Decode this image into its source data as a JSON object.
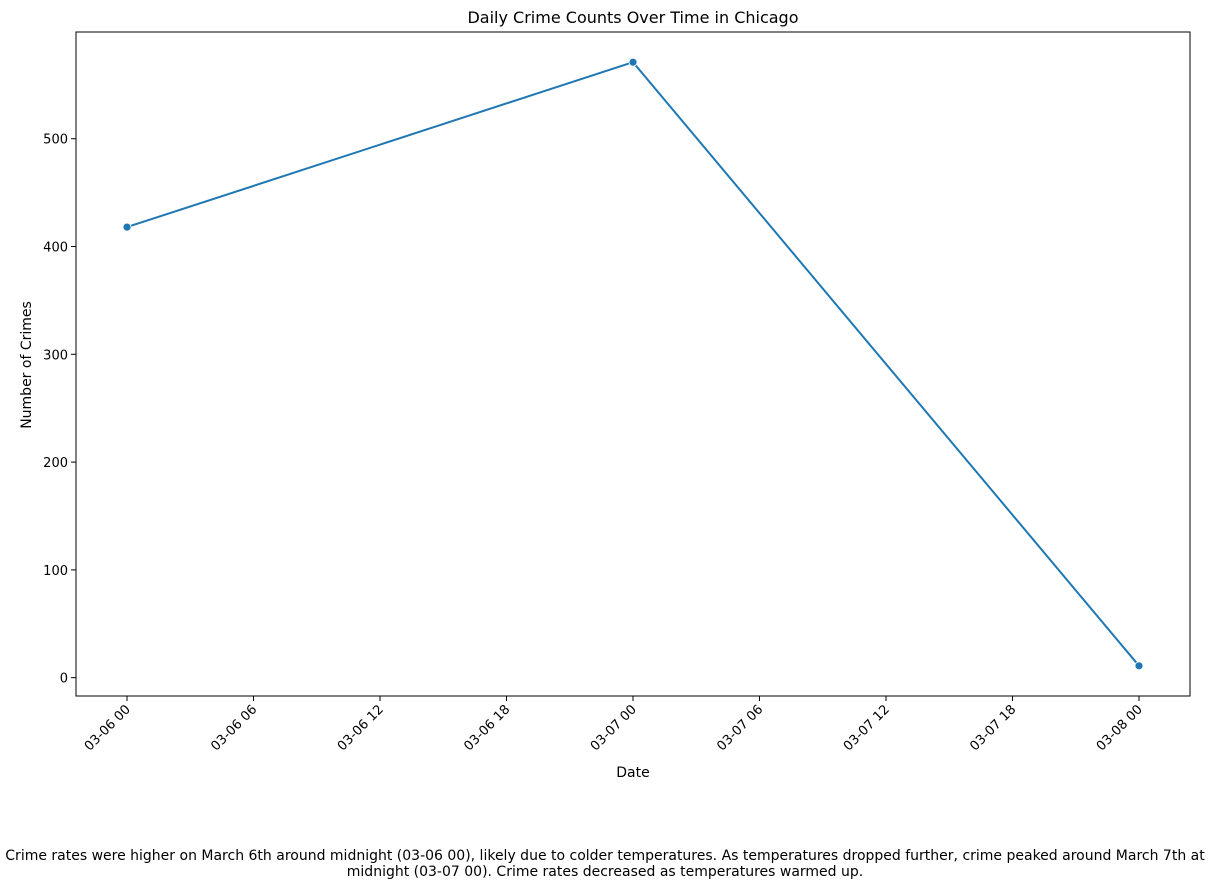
{
  "chart_data": {
    "type": "line",
    "title": "Daily Crime Counts Over Time in Chicago",
    "xlabel": "Date",
    "ylabel": "Number of Crimes",
    "x": [
      "2024-03-06",
      "2024-03-07",
      "2024-03-08"
    ],
    "series": [
      {
        "values": [
          418,
          571,
          11
        ],
        "color": "#1f77b4",
        "marker": "circle"
      }
    ],
    "x_tick_labels": [
      "03-06 00",
      "03-06 06",
      "03-06 12",
      "03-06 18",
      "03-07 00",
      "03-07 06",
      "03-07 12",
      "03-07 18",
      "03-08 00"
    ],
    "x_tick_rotation": 45,
    "y_ticks": [
      0,
      100,
      200,
      300,
      400,
      500
    ],
    "ylim": [
      -17,
      599
    ],
    "grid": false,
    "legend": "none"
  },
  "caption": "Crime rates were higher on March 6th around midnight (03-06 00), likely due to colder temperatures. As temperatures dropped further, crime peaked around March 7th at midnight (03-07 00). Crime rates decreased as temperatures warmed up."
}
